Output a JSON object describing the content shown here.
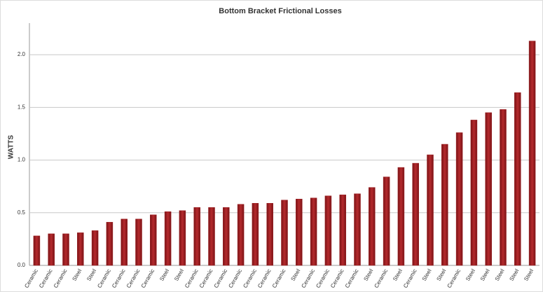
{
  "chart_data": {
    "type": "bar",
    "title": "Bottom Bracket Frictional Losses",
    "y_label": "WATTS",
    "categories": [
      "Ceramic",
      "Ceramic",
      "Ceramic",
      "Steel",
      "Steel",
      "Ceramic",
      "Ceramic",
      "Ceramic",
      "Ceramic",
      "Steel",
      "Steel",
      "Ceramic",
      "Ceramic",
      "Ceramic",
      "Ceramic",
      "Ceramic",
      "Ceramic",
      "Ceramic",
      "Steel",
      "Ceramic",
      "Ceramic",
      "Ceramic",
      "Ceramic",
      "Steel",
      "Ceramic",
      "Steel",
      "Ceramic",
      "Steel",
      "Steel",
      "Ceramic",
      "Steel",
      "Steel",
      "Steel",
      "Steel",
      "Steel"
    ],
    "values": [
      0.28,
      0.3,
      0.3,
      0.31,
      0.33,
      0.41,
      0.44,
      0.44,
      0.48,
      0.51,
      0.52,
      0.55,
      0.55,
      0.55,
      0.58,
      0.59,
      0.59,
      0.62,
      0.63,
      0.64,
      0.66,
      0.67,
      0.68,
      0.74,
      0.84,
      0.93,
      0.97,
      1.05,
      1.15,
      1.26,
      1.38,
      1.45,
      1.48,
      1.64,
      2.13
    ],
    "color": "#9b1c1f",
    "ylim": [
      0,
      2.3
    ],
    "yticks": [
      {
        "value": 0,
        "label": "0.0"
      },
      0.5,
      {
        "value": 1,
        "label": "1.0"
      },
      1.5,
      {
        "value": 2,
        "label": "2.0"
      }
    ],
    "grid": true
  }
}
